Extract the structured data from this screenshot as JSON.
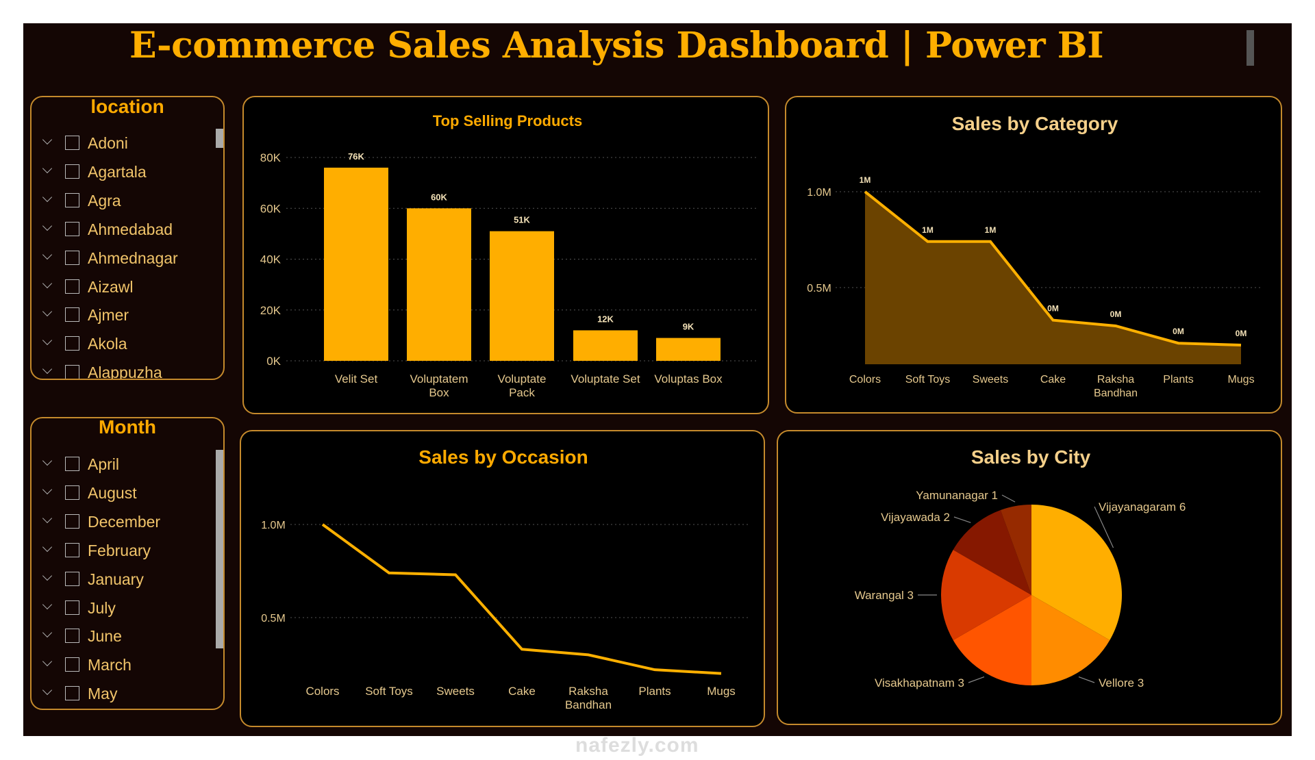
{
  "header": {
    "title": "E-commerce Sales Analysis Dashboard | Power BI"
  },
  "colors": {
    "accent": "#FFAE00",
    "background": "#140604",
    "border": "#C58A2C",
    "area_fill": "#6B4300",
    "light_title": "#F5D08A"
  },
  "location_slicer": {
    "title": "location",
    "items": [
      "Adoni",
      "Agartala",
      "Agra",
      "Ahmedabad",
      "Ahmednagar",
      "Aizawl",
      "Ajmer",
      "Akola",
      "Alappuzha"
    ]
  },
  "month_slicer": {
    "title": "Month",
    "items": [
      "April",
      "August",
      "December",
      "February",
      "January",
      "July",
      "June",
      "March",
      "May"
    ]
  },
  "watermark": "nafezly.com",
  "chart_data": [
    {
      "id": "top-products",
      "type": "bar",
      "title": "Top Selling Products",
      "categories": [
        "Velit Set",
        "Voluptatem Box",
        "Voluptate Pack",
        "Voluptate Set",
        "Voluptas Box"
      ],
      "values": [
        76000,
        60000,
        51000,
        12000,
        9000
      ],
      "data_labels": [
        "76K",
        "60K",
        "51K",
        "12K",
        "9K"
      ],
      "yticks": [
        "0K",
        "20K",
        "40K",
        "60K",
        "80K"
      ],
      "ylim": [
        0,
        80000
      ],
      "grid": true
    },
    {
      "id": "category",
      "type": "area",
      "title": "Sales by Category",
      "categories": [
        "Colors",
        "Soft Toys",
        "Sweets",
        "Cake",
        "Raksha Bandhan",
        "Plants",
        "Mugs"
      ],
      "values": [
        1.0,
        0.74,
        0.74,
        0.33,
        0.3,
        0.21,
        0.2
      ],
      "data_labels": [
        "1M",
        "1M",
        "1M",
        "0M",
        "0M",
        "0M",
        "0M"
      ],
      "yticks": [
        "0.5M",
        "1.0M"
      ],
      "ylim": [
        0.1,
        1.1
      ],
      "grid": true
    },
    {
      "id": "occasion",
      "type": "line",
      "title": "Sales by Occasion",
      "categories": [
        "Colors",
        "Soft Toys",
        "Sweets",
        "Cake",
        "Raksha Bandhan",
        "Plants",
        "Mugs"
      ],
      "values": [
        1.0,
        0.74,
        0.73,
        0.33,
        0.3,
        0.22,
        0.2
      ],
      "yticks": [
        "0.5M",
        "1.0M"
      ],
      "grid": true
    },
    {
      "id": "city",
      "type": "pie",
      "title": "Sales by City",
      "slices": [
        {
          "label": "Vijayanagaram",
          "value": 6,
          "color": "#FFAE00"
        },
        {
          "label": "Vellore",
          "value": 3,
          "color": "#FF8C00"
        },
        {
          "label": "Visakhapatnam",
          "value": 3,
          "color": "#FF5500"
        },
        {
          "label": "Warangal",
          "value": 3,
          "color": "#D93A00"
        },
        {
          "label": "Vijayawada",
          "value": 2,
          "color": "#861800"
        },
        {
          "label": "Yamunanagar",
          "value": 1,
          "color": "#962A00"
        }
      ]
    }
  ]
}
